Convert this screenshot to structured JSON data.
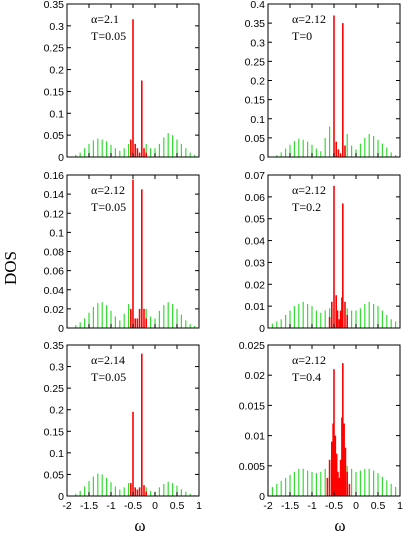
{
  "figure": {
    "ylabel": "DOS",
    "xlabel": "ω",
    "colors": {
      "green": "#33dd33",
      "red": "#ff0000",
      "axis": "#000000"
    }
  },
  "chart_data": [
    {
      "type": "bar",
      "panel": "top-left",
      "annotations": [
        "α=2.1",
        "T=0.05"
      ],
      "xlim": [
        -2,
        1
      ],
      "ylim": [
        0,
        0.35
      ],
      "x_ticks": [
        "-2",
        "-1.5",
        "-1",
        "-0.5",
        "0",
        "0.5",
        "1"
      ],
      "show_x_tick_labels": false,
      "y_ticks": [
        "0",
        "0.05",
        "0.1",
        "0.15",
        "0.2",
        "0.25",
        "0.3",
        "0.35"
      ],
      "series": [
        {
          "color": "green",
          "points": [
            [
              -1.8,
              0.005
            ],
            [
              -1.7,
              0.01
            ],
            [
              -1.6,
              0.02
            ],
            [
              -1.5,
              0.03
            ],
            [
              -1.4,
              0.038
            ],
            [
              -1.3,
              0.042
            ],
            [
              -1.2,
              0.04
            ],
            [
              -1.1,
              0.036
            ],
            [
              -1.0,
              0.028
            ],
            [
              -0.9,
              0.02
            ],
            [
              -0.8,
              0.014
            ],
            [
              -0.7,
              0.02
            ],
            [
              -0.6,
              0.03
            ],
            [
              -0.2,
              0.03
            ],
            [
              -0.1,
              0.02
            ],
            [
              0.0,
              0.02
            ],
            [
              0.1,
              0.03
            ],
            [
              0.2,
              0.045
            ],
            [
              0.3,
              0.055
            ],
            [
              0.4,
              0.05
            ],
            [
              0.5,
              0.04
            ],
            [
              0.6,
              0.03
            ],
            [
              0.7,
              0.02
            ],
            [
              0.8,
              0.01
            ],
            [
              0.9,
              0.005
            ]
          ]
        },
        {
          "color": "red",
          "points": [
            [
              -0.55,
              0.04
            ],
            [
              -0.5,
              0.315
            ],
            [
              -0.45,
              0.03
            ],
            [
              -0.4,
              0.02
            ],
            [
              -0.35,
              0.01
            ],
            [
              -0.3,
              0.175
            ],
            [
              -0.25,
              0.02
            ],
            [
              -0.2,
              0.01
            ]
          ]
        }
      ]
    },
    {
      "type": "bar",
      "panel": "top-right",
      "annotations": [
        "α=2.12",
        "T=0"
      ],
      "xlim": [
        -2,
        1
      ],
      "ylim": [
        0,
        0.4
      ],
      "x_ticks": [
        "-2",
        "-1.5",
        "-1",
        "-0.5",
        "0",
        "0.5",
        "1"
      ],
      "show_x_tick_labels": false,
      "y_ticks": [
        "0",
        "0.05",
        "0.1",
        "0.15",
        "0.2",
        "0.25",
        "0.3",
        "0.35",
        "0.4"
      ],
      "series": [
        {
          "color": "green",
          "points": [
            [
              -1.8,
              0.005
            ],
            [
              -1.7,
              0.012
            ],
            [
              -1.6,
              0.022
            ],
            [
              -1.5,
              0.032
            ],
            [
              -1.4,
              0.042
            ],
            [
              -1.3,
              0.048
            ],
            [
              -1.2,
              0.045
            ],
            [
              -1.1,
              0.04
            ],
            [
              -1.0,
              0.032
            ],
            [
              -0.9,
              0.022
            ],
            [
              -0.8,
              0.015
            ],
            [
              -0.7,
              0.05
            ],
            [
              -0.6,
              0.08
            ],
            [
              -0.2,
              0.06
            ],
            [
              -0.1,
              0.03
            ],
            [
              0.0,
              0.02
            ],
            [
              0.1,
              0.035
            ],
            [
              0.2,
              0.05
            ],
            [
              0.3,
              0.06
            ],
            [
              0.4,
              0.055
            ],
            [
              0.5,
              0.045
            ],
            [
              0.6,
              0.035
            ],
            [
              0.7,
              0.025
            ],
            [
              0.8,
              0.012
            ],
            [
              0.9,
              0.005
            ]
          ]
        },
        {
          "color": "red",
          "points": [
            [
              -0.5,
              0.37
            ],
            [
              -0.45,
              0.04
            ],
            [
              -0.4,
              0.02
            ],
            [
              -0.35,
              0.01
            ],
            [
              -0.3,
              0.35
            ],
            [
              -0.25,
              0.03
            ]
          ]
        }
      ]
    },
    {
      "type": "bar",
      "panel": "middle-left",
      "annotations": [
        "α=2.12",
        "T=0.05"
      ],
      "xlim": [
        -2,
        1
      ],
      "ylim": [
        0,
        0.16
      ],
      "x_ticks": [
        "-2",
        "-1.5",
        "-1",
        "-0.5",
        "0",
        "0.5",
        "1"
      ],
      "show_x_tick_labels": false,
      "y_ticks": [
        "0",
        "0.02",
        "0.04",
        "0.06",
        "0.08",
        "0.1",
        "0.12",
        "0.14",
        "0.16"
      ],
      "series": [
        {
          "color": "green",
          "points": [
            [
              -1.8,
              0.003
            ],
            [
              -1.7,
              0.006
            ],
            [
              -1.6,
              0.01
            ],
            [
              -1.5,
              0.016
            ],
            [
              -1.4,
              0.022
            ],
            [
              -1.3,
              0.026
            ],
            [
              -1.2,
              0.027
            ],
            [
              -1.1,
              0.024
            ],
            [
              -1.0,
              0.018
            ],
            [
              -0.9,
              0.012
            ],
            [
              -0.8,
              0.008
            ],
            [
              -0.7,
              0.015
            ],
            [
              -0.6,
              0.025
            ],
            [
              -0.2,
              0.02
            ],
            [
              -0.1,
              0.012
            ],
            [
              0.0,
              0.01
            ],
            [
              0.1,
              0.018
            ],
            [
              0.2,
              0.024
            ],
            [
              0.3,
              0.027
            ],
            [
              0.4,
              0.025
            ],
            [
              0.5,
              0.02
            ],
            [
              0.6,
              0.014
            ],
            [
              0.7,
              0.008
            ],
            [
              0.8,
              0.004
            ],
            [
              0.9,
              0.002
            ]
          ]
        },
        {
          "color": "red",
          "points": [
            [
              -0.55,
              0.02
            ],
            [
              -0.5,
              0.155
            ],
            [
              -0.45,
              0.01
            ],
            [
              -0.4,
              0.01
            ],
            [
              -0.35,
              0.02
            ],
            [
              -0.3,
              0.145
            ],
            [
              -0.25,
              0.02
            ],
            [
              -0.2,
              0.01
            ]
          ]
        }
      ]
    },
    {
      "type": "bar",
      "panel": "middle-right",
      "annotations": [
        "α=2.12",
        "T=0.2"
      ],
      "xlim": [
        -2,
        1
      ],
      "ylim": [
        0,
        0.07
      ],
      "x_ticks": [
        "-2",
        "-1.5",
        "-1",
        "-0.5",
        "0",
        "0.5",
        "1"
      ],
      "show_x_tick_labels": false,
      "y_ticks": [
        "0",
        "0.01",
        "0.02",
        "0.03",
        "0.04",
        "0.05",
        "0.06",
        "0.07"
      ],
      "series": [
        {
          "color": "green",
          "points": [
            [
              -1.9,
              0.002
            ],
            [
              -1.8,
              0.003
            ],
            [
              -1.7,
              0.004
            ],
            [
              -1.6,
              0.006
            ],
            [
              -1.5,
              0.008
            ],
            [
              -1.4,
              0.01
            ],
            [
              -1.3,
              0.011
            ],
            [
              -1.2,
              0.012
            ],
            [
              -1.1,
              0.011
            ],
            [
              -1.0,
              0.01
            ],
            [
              -0.9,
              0.008
            ],
            [
              -0.8,
              0.007
            ],
            [
              -0.7,
              0.008
            ],
            [
              -0.6,
              0.009
            ],
            [
              -0.2,
              0.009
            ],
            [
              -0.1,
              0.008
            ],
            [
              0.0,
              0.008
            ],
            [
              0.1,
              0.009
            ],
            [
              0.2,
              0.011
            ],
            [
              0.3,
              0.012
            ],
            [
              0.4,
              0.011
            ],
            [
              0.5,
              0.01
            ],
            [
              0.6,
              0.008
            ],
            [
              0.7,
              0.006
            ],
            [
              0.8,
              0.004
            ],
            [
              0.9,
              0.003
            ]
          ]
        },
        {
          "color": "red",
          "points": [
            [
              -0.6,
              0.005
            ],
            [
              -0.55,
              0.012
            ],
            [
              -0.5,
              0.065
            ],
            [
              -0.45,
              0.015
            ],
            [
              -0.42,
              0.008
            ],
            [
              -0.38,
              0.004
            ],
            [
              -0.35,
              0.008
            ],
            [
              -0.32,
              0.014
            ],
            [
              -0.3,
              0.057
            ],
            [
              -0.25,
              0.012
            ],
            [
              -0.2,
              0.006
            ]
          ]
        }
      ]
    },
    {
      "type": "bar",
      "panel": "bottom-left",
      "annotations": [
        "α=2.14",
        "T=0.05"
      ],
      "xlim": [
        -2,
        1
      ],
      "ylim": [
        0,
        0.35
      ],
      "x_ticks": [
        "-2",
        "-1.5",
        "-1",
        "-0.5",
        "0",
        "0.5",
        "1"
      ],
      "show_x_tick_labels": true,
      "y_ticks": [
        "0",
        "0.05",
        "0.1",
        "0.15",
        "0.2",
        "0.25",
        "0.3",
        "0.35"
      ],
      "series": [
        {
          "color": "green",
          "points": [
            [
              -1.8,
              0.005
            ],
            [
              -1.7,
              0.012
            ],
            [
              -1.6,
              0.022
            ],
            [
              -1.5,
              0.035
            ],
            [
              -1.4,
              0.045
            ],
            [
              -1.3,
              0.052
            ],
            [
              -1.2,
              0.05
            ],
            [
              -1.1,
              0.042
            ],
            [
              -1.0,
              0.032
            ],
            [
              -0.9,
              0.022
            ],
            [
              -0.8,
              0.015
            ],
            [
              -0.7,
              0.02
            ],
            [
              -0.6,
              0.03
            ],
            [
              -0.2,
              0.02
            ],
            [
              -0.1,
              0.012
            ],
            [
              0.0,
              0.01
            ],
            [
              0.1,
              0.02
            ],
            [
              0.2,
              0.028
            ],
            [
              0.3,
              0.033
            ],
            [
              0.4,
              0.03
            ],
            [
              0.5,
              0.024
            ],
            [
              0.6,
              0.016
            ],
            [
              0.7,
              0.01
            ],
            [
              0.8,
              0.005
            ],
            [
              0.9,
              0.002
            ]
          ]
        },
        {
          "color": "red",
          "points": [
            [
              -0.55,
              0.03
            ],
            [
              -0.5,
              0.195
            ],
            [
              -0.45,
              0.02
            ],
            [
              -0.4,
              0.015
            ],
            [
              -0.35,
              0.02
            ],
            [
              -0.3,
              0.33
            ],
            [
              -0.25,
              0.025
            ],
            [
              -0.2,
              0.01
            ]
          ]
        }
      ]
    },
    {
      "type": "bar",
      "panel": "bottom-right",
      "annotations": [
        "α=2.12",
        "T=0.4"
      ],
      "xlim": [
        -2,
        1
      ],
      "ylim": [
        0,
        0.025
      ],
      "x_ticks": [
        "-2",
        "-1.5",
        "-1",
        "-0.5",
        "0",
        "0.5",
        "1"
      ],
      "show_x_tick_labels": true,
      "y_ticks": [
        "0",
        "0.005",
        "0.01",
        "0.015",
        "0.02",
        "0.025"
      ],
      "series": [
        {
          "color": "green",
          "points": [
            [
              -2.0,
              0.001
            ],
            [
              -1.9,
              0.0015
            ],
            [
              -1.8,
              0.002
            ],
            [
              -1.7,
              0.0025
            ],
            [
              -1.6,
              0.003
            ],
            [
              -1.5,
              0.0035
            ],
            [
              -1.4,
              0.004
            ],
            [
              -1.3,
              0.0045
            ],
            [
              -1.2,
              0.0045
            ],
            [
              -1.1,
              0.0042
            ],
            [
              -1.0,
              0.004
            ],
            [
              -0.9,
              0.0038
            ],
            [
              -0.8,
              0.004
            ],
            [
              -0.7,
              0.0045
            ],
            [
              -0.6,
              0.005
            ],
            [
              -0.2,
              0.005
            ],
            [
              -0.1,
              0.0045
            ],
            [
              0.0,
              0.004
            ],
            [
              0.1,
              0.0042
            ],
            [
              0.2,
              0.0045
            ],
            [
              0.3,
              0.0045
            ],
            [
              0.4,
              0.0042
            ],
            [
              0.5,
              0.0038
            ],
            [
              0.6,
              0.0032
            ],
            [
              0.7,
              0.0026
            ],
            [
              0.8,
              0.002
            ],
            [
              0.9,
              0.0015
            ]
          ]
        },
        {
          "color": "red",
          "points": [
            [
              -0.65,
              0.003
            ],
            [
              -0.6,
              0.006
            ],
            [
              -0.55,
              0.009
            ],
            [
              -0.52,
              0.012
            ],
            [
              -0.5,
              0.021
            ],
            [
              -0.47,
              0.01
            ],
            [
              -0.44,
              0.007
            ],
            [
              -0.41,
              0.004
            ],
            [
              -0.38,
              0.003
            ],
            [
              -0.35,
              0.006
            ],
            [
              -0.32,
              0.013
            ],
            [
              -0.3,
              0.022
            ],
            [
              -0.27,
              0.012
            ],
            [
              -0.24,
              0.008
            ],
            [
              -0.2,
              0.004
            ],
            [
              -0.15,
              0.002
            ]
          ]
        }
      ]
    }
  ]
}
